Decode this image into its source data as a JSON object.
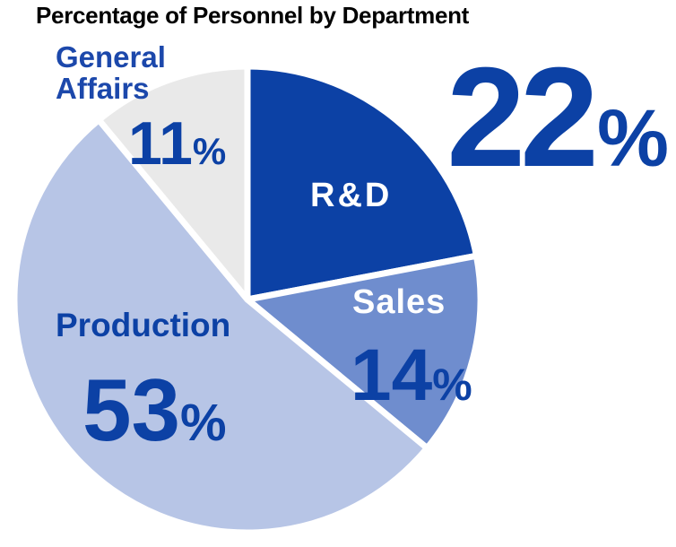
{
  "title": "Percentage of Personnel by Department",
  "chart_data": {
    "type": "pie",
    "title": "Percentage of Personnel by Department",
    "unit": "%",
    "start_angle": "12-o'clock",
    "direction": "clockwise",
    "legend_position": "labels-on-and-around-chart",
    "segments": [
      {
        "label": "R&D",
        "value": 22,
        "color": "#0C41A5",
        "label_color": "#FFFFFF",
        "value_color": "#0C41A5"
      },
      {
        "label": "Sales",
        "value": 14,
        "color": "#6F8DCE",
        "label_color": "#FFFFFF",
        "value_color": "#0C41A5"
      },
      {
        "label": "Production",
        "value": 53,
        "color": "#B7C5E6",
        "label_color": "#0C41A5",
        "value_color": "#0C41A5"
      },
      {
        "label": "General Affairs",
        "value": 11,
        "color": "#E9E9E9",
        "label_color": "#1C48AB",
        "value_color": "#0C41A5"
      }
    ],
    "colors": {
      "accent_blue": "#0C41A5",
      "title_black": "#000000",
      "slice_gap_white": "#FFFFFF"
    }
  }
}
